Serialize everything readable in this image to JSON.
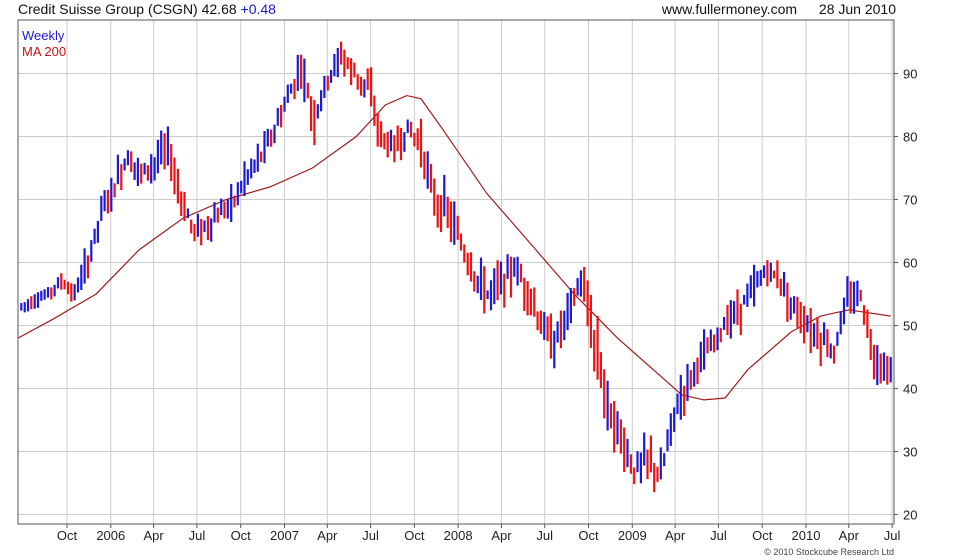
{
  "header": {
    "company": "Credit Suisse Group (CSGN)",
    "last": "42.68",
    "change": "+0.48",
    "site": "www.fullermoney.com",
    "date": "28 Jun 2010"
  },
  "legend": {
    "weekly_label": "Weekly",
    "ma_label": "MA 200",
    "weekly_color": "#1a1ad6",
    "ma_color": "#c81414"
  },
  "copyright": "© 2010 Stockcube Research Ltd",
  "colors": {
    "up": "#1a1ad6",
    "down": "#ee1111",
    "ma": "#a01c1c",
    "grid": "#cccccc",
    "frame": "#555555"
  },
  "chart_data": {
    "type": "line",
    "subtype": "weekly high-low price bars with 200-period moving average",
    "yaxis_side": "right",
    "ylim": [
      18.5,
      98.5
    ],
    "yticks": [
      20,
      30,
      40,
      50,
      60,
      70,
      80,
      90
    ],
    "xlim": [
      "2005-06-20",
      "2010-07-05"
    ],
    "xticks": [
      {
        "label": "Oct",
        "date": "2005-10-01"
      },
      {
        "label": "2006",
        "date": "2006-01-01"
      },
      {
        "label": "Apr",
        "date": "2006-04-01"
      },
      {
        "label": "Jul",
        "date": "2006-07-01"
      },
      {
        "label": "Oct",
        "date": "2006-10-01"
      },
      {
        "label": "2007",
        "date": "2007-01-01"
      },
      {
        "label": "Apr",
        "date": "2007-04-01"
      },
      {
        "label": "Jul",
        "date": "2007-07-01"
      },
      {
        "label": "Oct",
        "date": "2007-10-01"
      },
      {
        "label": "2008",
        "date": "2008-01-01"
      },
      {
        "label": "Apr",
        "date": "2008-04-01"
      },
      {
        "label": "Jul",
        "date": "2008-07-01"
      },
      {
        "label": "Oct",
        "date": "2008-10-01"
      },
      {
        "label": "2009",
        "date": "2009-01-01"
      },
      {
        "label": "Apr",
        "date": "2009-04-01"
      },
      {
        "label": "Jul",
        "date": "2009-07-01"
      },
      {
        "label": "Oct",
        "date": "2009-10-01"
      },
      {
        "label": "2010",
        "date": "2010-01-01"
      },
      {
        "label": "Apr",
        "date": "2010-04-01"
      },
      {
        "label": "Jul",
        "date": "2010-07-01"
      }
    ],
    "grid": true,
    "series": [
      {
        "name": "Weekly",
        "kind": "price",
        "x": [
          "2005-06-27",
          "2005-07-25",
          "2005-08-22",
          "2005-09-19",
          "2005-10-17",
          "2005-11-14",
          "2005-12-12",
          "2006-01-09",
          "2006-02-06",
          "2006-03-06",
          "2006-04-03",
          "2006-05-01",
          "2006-05-29",
          "2006-06-26",
          "2006-07-24",
          "2006-08-21",
          "2006-09-18",
          "2006-10-16",
          "2006-11-13",
          "2006-12-11",
          "2007-01-08",
          "2007-02-05",
          "2007-03-05",
          "2007-04-02",
          "2007-04-30",
          "2007-05-28",
          "2007-06-25",
          "2007-07-23",
          "2007-08-20",
          "2007-09-17",
          "2007-10-15",
          "2007-11-12",
          "2007-12-10",
          "2008-01-07",
          "2008-02-04",
          "2008-03-03",
          "2008-03-31",
          "2008-04-28",
          "2008-05-26",
          "2008-06-23",
          "2008-07-21",
          "2008-08-18",
          "2008-09-15",
          "2008-10-13",
          "2008-11-10",
          "2008-12-08",
          "2009-01-05",
          "2009-02-02",
          "2009-03-02",
          "2009-03-30",
          "2009-04-27",
          "2009-05-25",
          "2009-06-22",
          "2009-07-20",
          "2009-08-17",
          "2009-09-14",
          "2009-10-12",
          "2009-11-09",
          "2009-12-07",
          "2010-01-04",
          "2010-02-01",
          "2010-03-01",
          "2010-03-29",
          "2010-04-26",
          "2010-05-24",
          "2010-06-28"
        ],
        "y": [
          53,
          54,
          55,
          57,
          55,
          60,
          68,
          72,
          77,
          74,
          76,
          78,
          70,
          65,
          66,
          68,
          70,
          74,
          77,
          81,
          86,
          91,
          83,
          89,
          93,
          90,
          88,
          80,
          78,
          81,
          79,
          70,
          68,
          63,
          58,
          55,
          57,
          59,
          56,
          50,
          47,
          52,
          57,
          48,
          38,
          32,
          27,
          29,
          26,
          36,
          41,
          45,
          47,
          51,
          53,
          56,
          59,
          57,
          53,
          50,
          48,
          46,
          54,
          55,
          45,
          42.68
        ],
        "range": [
          [
            52,
            54.5
          ],
          [
            53,
            55.5
          ],
          [
            54,
            56.5
          ],
          [
            55,
            58
          ],
          [
            53,
            57
          ],
          [
            57,
            63
          ],
          [
            64,
            70
          ],
          [
            68,
            76
          ],
          [
            73,
            79
          ],
          [
            70,
            77
          ],
          [
            72,
            79
          ],
          [
            73,
            80
          ],
          [
            66,
            74
          ],
          [
            62,
            68
          ],
          [
            63,
            70
          ],
          [
            65,
            71
          ],
          [
            67,
            73
          ],
          [
            71,
            77
          ],
          [
            74,
            80
          ],
          [
            78,
            84
          ],
          [
            82,
            89
          ],
          [
            87,
            94
          ],
          [
            79,
            88
          ],
          [
            85,
            92
          ],
          [
            90,
            96
          ],
          [
            86,
            93
          ],
          [
            84,
            91
          ],
          [
            76,
            84
          ],
          [
            74,
            82
          ],
          [
            77,
            84
          ],
          [
            75,
            83
          ],
          [
            65,
            74
          ],
          [
            63,
            71
          ],
          [
            58,
            67
          ],
          [
            53,
            62
          ],
          [
            50,
            59
          ],
          [
            53,
            60
          ],
          [
            55,
            62
          ],
          [
            51,
            59
          ],
          [
            45,
            55
          ],
          [
            42,
            51
          ],
          [
            48,
            56
          ],
          [
            52,
            60
          ],
          [
            40,
            55
          ],
          [
            32,
            44
          ],
          [
            24,
            37
          ],
          [
            23,
            30
          ],
          [
            25,
            33
          ],
          [
            22,
            30
          ],
          [
            31,
            40
          ],
          [
            38,
            45
          ],
          [
            42,
            48
          ],
          [
            44,
            50
          ],
          [
            48,
            54
          ],
          [
            50,
            56
          ],
          [
            53,
            59
          ],
          [
            56,
            61
          ],
          [
            54,
            60
          ],
          [
            50,
            56
          ],
          [
            47,
            53
          ],
          [
            44,
            52
          ],
          [
            42,
            50
          ],
          [
            51,
            57
          ],
          [
            52,
            58
          ],
          [
            42,
            50
          ],
          [
            41,
            45
          ]
        ]
      },
      {
        "name": "MA 200",
        "kind": "line",
        "x": [
          "2005-06-20",
          "2005-09-01",
          "2005-12-01",
          "2006-03-01",
          "2006-06-01",
          "2006-09-01",
          "2006-12-01",
          "2007-03-01",
          "2007-06-01",
          "2007-08-01",
          "2007-09-15",
          "2007-10-15",
          "2007-12-01",
          "2008-03-01",
          "2008-06-01",
          "2008-09-01",
          "2008-12-01",
          "2009-03-01",
          "2009-04-15",
          "2009-06-01",
          "2009-07-15",
          "2009-09-01",
          "2009-12-01",
          "2010-02-01",
          "2010-04-01",
          "2010-06-28"
        ],
        "y": [
          48,
          51,
          55,
          62,
          67,
          70,
          72,
          75,
          80,
          85,
          86.5,
          86,
          81,
          71,
          63,
          55,
          48,
          42,
          39,
          38.2,
          38.5,
          43,
          49,
          51.5,
          52.5,
          51.5
        ]
      }
    ]
  }
}
